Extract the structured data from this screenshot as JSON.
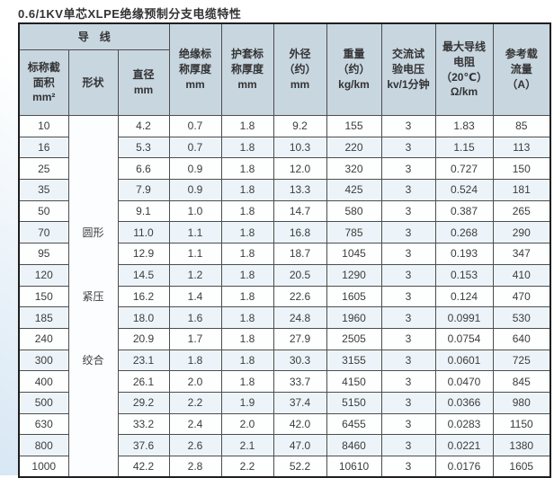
{
  "title": "0.6/1KV单芯XLPE绝缘预制分支电缆特性",
  "table": {
    "group_header": "导　线",
    "headers": {
      "cross_section": "标称截\n面积\nmm²",
      "shape": "形状",
      "diameter": "直径\nmm",
      "insulation_thickness": "绝缘标\n称厚度\nmm",
      "sheath_thickness": "护套标\n称厚度\nmm",
      "outer_diameter": "外径\n（约）\nmm",
      "weight": "重量\n（约）\nkg/km",
      "test_voltage": "交流试\n验电压\nkv/1分钟",
      "max_resistance": "最大导线\n电阻\n（20℃）\nΩ/km",
      "ampacity": "参考载\n流量\n（A）"
    },
    "shape_labels": [
      {
        "label": "圆形",
        "row": 6
      },
      {
        "label": "紧压",
        "row": 9
      },
      {
        "label": "绞合",
        "row": 12
      }
    ],
    "rows": [
      [
        "10",
        "4.2",
        "0.7",
        "1.8",
        "9.2",
        "155",
        "3",
        "1.83",
        "85"
      ],
      [
        "16",
        "5.3",
        "0.7",
        "1.8",
        "10.3",
        "220",
        "3",
        "1.15",
        "113"
      ],
      [
        "25",
        "6.6",
        "0.9",
        "1.8",
        "12.0",
        "320",
        "3",
        "0.727",
        "150"
      ],
      [
        "35",
        "7.9",
        "0.9",
        "1.8",
        "13.3",
        "425",
        "3",
        "0.524",
        "181"
      ],
      [
        "50",
        "9.1",
        "1.0",
        "1.8",
        "14.7",
        "580",
        "3",
        "0.387",
        "265"
      ],
      [
        "70",
        "11.0",
        "1.1",
        "1.8",
        "16.8",
        "785",
        "3",
        "0.268",
        "290"
      ],
      [
        "95",
        "12.9",
        "1.1",
        "1.8",
        "18.7",
        "1045",
        "3",
        "0.193",
        "347"
      ],
      [
        "120",
        "14.5",
        "1.2",
        "1.8",
        "20.5",
        "1290",
        "3",
        "0.153",
        "410"
      ],
      [
        "150",
        "16.2",
        "1.4",
        "1.8",
        "22.6",
        "1605",
        "3",
        "0.124",
        "470"
      ],
      [
        "185",
        "18.0",
        "1.6",
        "1.8",
        "24.8",
        "1960",
        "3",
        "0.0991",
        "530"
      ],
      [
        "240",
        "20.9",
        "1.7",
        "1.8",
        "27.9",
        "2505",
        "3",
        "0.0754",
        "640"
      ],
      [
        "300",
        "23.1",
        "1.8",
        "1.8",
        "30.3",
        "3155",
        "3",
        "0.0601",
        "725"
      ],
      [
        "400",
        "26.1",
        "2.0",
        "1.8",
        "33.7",
        "4150",
        "3",
        "0.0470",
        "845"
      ],
      [
        "500",
        "29.2",
        "2.2",
        "1.9",
        "37.4",
        "5150",
        "3",
        "0.0366",
        "980"
      ],
      [
        "630",
        "33.2",
        "2.4",
        "2.0",
        "42.0",
        "6455",
        "3",
        "0.0283",
        "1150"
      ],
      [
        "800",
        "37.6",
        "2.6",
        "2.1",
        "47.0",
        "8460",
        "3",
        "0.0221",
        "1380"
      ],
      [
        "1000",
        "42.2",
        "2.8",
        "2.2",
        "52.2",
        "10610",
        "3",
        "0.0176",
        "1605"
      ]
    ]
  }
}
